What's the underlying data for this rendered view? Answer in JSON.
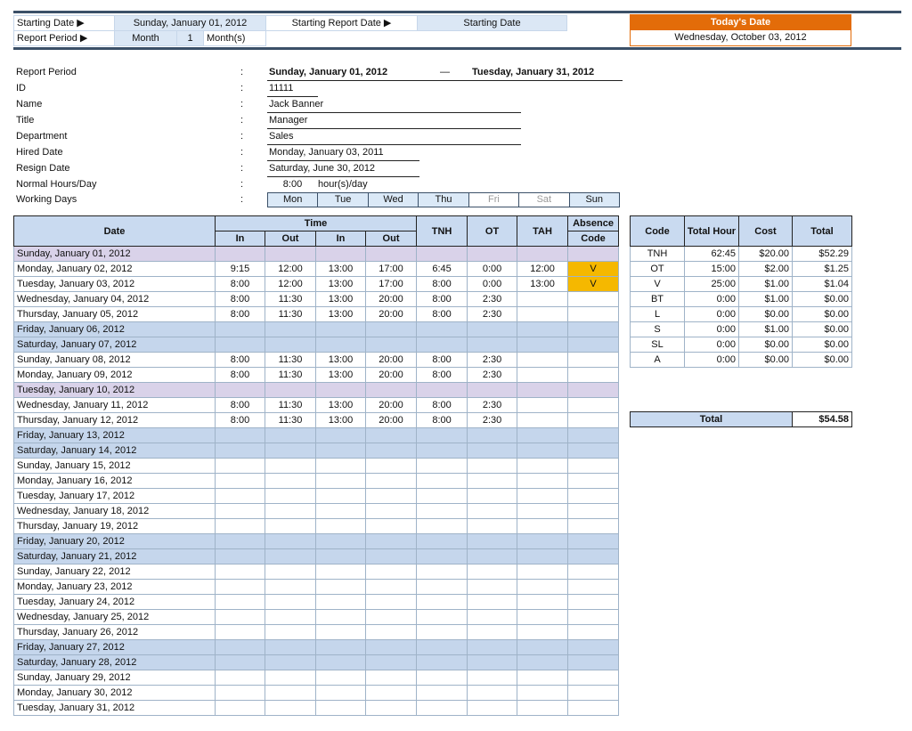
{
  "header": {
    "starting_date_label": "Starting Date ▶",
    "starting_date": "Sunday, January 01, 2012",
    "starting_report_date_label": "Starting Report Date ▶",
    "starting_report_date": "Starting Date",
    "report_period_label": "Report Period ▶",
    "period_unit": "Month",
    "period_count": "1",
    "period_suffix": "Month(s)",
    "today_label": "Today's Date",
    "today": "Wednesday, October 03, 2012",
    "today_color": "#e36c09"
  },
  "info": {
    "rows": [
      {
        "label": "Report Period",
        "value": "Sunday, January 01, 2012",
        "dash": "—",
        "value2": "Tuesday, January 31, 2012"
      },
      {
        "label": "ID",
        "value": "11111"
      },
      {
        "label": "Name",
        "value": "Jack Banner"
      },
      {
        "label": "Title",
        "value": "Manager"
      },
      {
        "label": "Department",
        "value": "Sales"
      },
      {
        "label": "Hired Date",
        "value": "Monday, January 03, 2011"
      },
      {
        "label": "Resign Date",
        "value": "Saturday, June 30, 2012"
      },
      {
        "label": "Normal Hours/Day",
        "value": "8:00",
        "unit": "hour(s)/day"
      },
      {
        "label": "Working Days"
      }
    ],
    "colon": ":",
    "days": [
      {
        "d": "Mon",
        "on": true
      },
      {
        "d": "Tue",
        "on": true
      },
      {
        "d": "Wed",
        "on": true
      },
      {
        "d": "Thu",
        "on": true
      },
      {
        "d": "Fri",
        "on": false
      },
      {
        "d": "Sat",
        "on": false
      },
      {
        "d": "Sun",
        "on": true
      }
    ]
  },
  "main": {
    "h_date": "Date",
    "h_time": "Time",
    "h_in": "In",
    "h_out": "Out",
    "h_tnh": "TNH",
    "h_ot": "OT",
    "h_tah": "TAH",
    "h_abs1": "Absence",
    "h_abs2": "Code",
    "rows": [
      [
        "Sunday, January 01, 2012",
        "",
        "",
        "",
        "",
        "",
        "",
        "",
        "",
        "sun"
      ],
      [
        "Monday, January 02, 2012",
        "9:15",
        "12:00",
        "13:00",
        "17:00",
        "6:45",
        "0:00",
        "12:00",
        "V",
        ""
      ],
      [
        "Tuesday, January 03, 2012",
        "8:00",
        "12:00",
        "13:00",
        "17:00",
        "8:00",
        "0:00",
        "13:00",
        "V",
        ""
      ],
      [
        "Wednesday, January 04, 2012",
        "8:00",
        "11:30",
        "13:00",
        "20:00",
        "8:00",
        "2:30",
        "",
        "",
        ""
      ],
      [
        "Thursday, January 05, 2012",
        "8:00",
        "11:30",
        "13:00",
        "20:00",
        "8:00",
        "2:30",
        "",
        "",
        ""
      ],
      [
        "Friday, January 06, 2012",
        "",
        "",
        "",
        "",
        "",
        "",
        "",
        "",
        "we"
      ],
      [
        "Saturday, January 07, 2012",
        "",
        "",
        "",
        "",
        "",
        "",
        "",
        "",
        "we"
      ],
      [
        "Sunday, January 08, 2012",
        "8:00",
        "11:30",
        "13:00",
        "20:00",
        "8:00",
        "2:30",
        "",
        "",
        ""
      ],
      [
        "Monday, January 09, 2012",
        "8:00",
        "11:30",
        "13:00",
        "20:00",
        "8:00",
        "2:30",
        "",
        "",
        ""
      ],
      [
        "Tuesday, January 10, 2012",
        "",
        "",
        "",
        "",
        "",
        "",
        "",
        "",
        "sun"
      ],
      [
        "Wednesday, January 11, 2012",
        "8:00",
        "11:30",
        "13:00",
        "20:00",
        "8:00",
        "2:30",
        "",
        "",
        ""
      ],
      [
        "Thursday, January 12, 2012",
        "8:00",
        "11:30",
        "13:00",
        "20:00",
        "8:00",
        "2:30",
        "",
        "",
        ""
      ],
      [
        "Friday, January 13, 2012",
        "",
        "",
        "",
        "",
        "",
        "",
        "",
        "",
        "we"
      ],
      [
        "Saturday, January 14, 2012",
        "",
        "",
        "",
        "",
        "",
        "",
        "",
        "",
        "we"
      ],
      [
        "Sunday, January 15, 2012",
        "",
        "",
        "",
        "",
        "",
        "",
        "",
        "",
        ""
      ],
      [
        "Monday, January 16, 2012",
        "",
        "",
        "",
        "",
        "",
        "",
        "",
        "",
        ""
      ],
      [
        "Tuesday, January 17, 2012",
        "",
        "",
        "",
        "",
        "",
        "",
        "",
        "",
        ""
      ],
      [
        "Wednesday, January 18, 2012",
        "",
        "",
        "",
        "",
        "",
        "",
        "",
        "",
        ""
      ],
      [
        "Thursday, January 19, 2012",
        "",
        "",
        "",
        "",
        "",
        "",
        "",
        "",
        ""
      ],
      [
        "Friday, January 20, 2012",
        "",
        "",
        "",
        "",
        "",
        "",
        "",
        "",
        "we"
      ],
      [
        "Saturday, January 21, 2012",
        "",
        "",
        "",
        "",
        "",
        "",
        "",
        "",
        "we"
      ],
      [
        "Sunday, January 22, 2012",
        "",
        "",
        "",
        "",
        "",
        "",
        "",
        "",
        ""
      ],
      [
        "Monday, January 23, 2012",
        "",
        "",
        "",
        "",
        "",
        "",
        "",
        "",
        ""
      ],
      [
        "Tuesday, January 24, 2012",
        "",
        "",
        "",
        "",
        "",
        "",
        "",
        "",
        ""
      ],
      [
        "Wednesday, January 25, 2012",
        "",
        "",
        "",
        "",
        "",
        "",
        "",
        "",
        ""
      ],
      [
        "Thursday, January 26, 2012",
        "",
        "",
        "",
        "",
        "",
        "",
        "",
        "",
        ""
      ],
      [
        "Friday, January 27, 2012",
        "",
        "",
        "",
        "",
        "",
        "",
        "",
        "",
        "we"
      ],
      [
        "Saturday, January 28, 2012",
        "",
        "",
        "",
        "",
        "",
        "",
        "",
        "",
        "we"
      ],
      [
        "Sunday, January 29, 2012",
        "",
        "",
        "",
        "",
        "",
        "",
        "",
        "",
        ""
      ],
      [
        "Monday, January 30, 2012",
        "",
        "",
        "",
        "",
        "",
        "",
        "",
        "",
        ""
      ],
      [
        "Tuesday, January 31, 2012",
        "",
        "",
        "",
        "",
        "",
        "",
        "",
        "",
        ""
      ]
    ]
  },
  "summary": {
    "h_code": "Code",
    "h_total_hour": "Total Hour",
    "h_cost": "Cost",
    "h_total": "Total",
    "rows": [
      [
        "TNH",
        "62:45",
        "$20.00",
        "$52.29"
      ],
      [
        "OT",
        "15:00",
        "$2.00",
        "$1.25"
      ],
      [
        "V",
        "25:00",
        "$1.00",
        "$1.04"
      ],
      [
        "BT",
        "0:00",
        "$1.00",
        "$0.00"
      ],
      [
        "L",
        "0:00",
        "$0.00",
        "$0.00"
      ],
      [
        "S",
        "0:00",
        "$1.00",
        "$0.00"
      ],
      [
        "SL",
        "0:00",
        "$0.00",
        "$0.00"
      ],
      [
        "A",
        "0:00",
        "$0.00",
        "$0.00"
      ]
    ],
    "total_label": "Total",
    "total_value": "$54.58"
  }
}
